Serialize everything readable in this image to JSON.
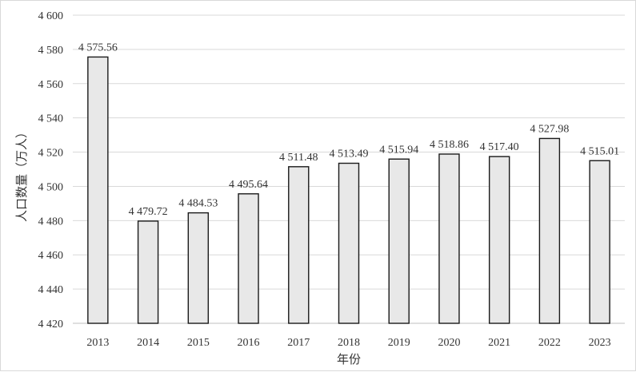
{
  "chart_data": {
    "type": "bar",
    "categories": [
      "2013",
      "2014",
      "2015",
      "2016",
      "2017",
      "2018",
      "2019",
      "2020",
      "2021",
      "2022",
      "2023"
    ],
    "values": [
      4575.56,
      4479.72,
      4484.53,
      4495.64,
      4511.48,
      4513.49,
      4515.94,
      4518.86,
      4517.4,
      4527.98,
      4515.01
    ],
    "data_labels": [
      "4 575.56",
      "4 479.72",
      "4 484.53",
      "4 495.64",
      "4 511.48",
      "4 513.49",
      "4 515.94",
      "4 518.86",
      "4 517.40",
      "4 527.98",
      "4 515.01"
    ],
    "y_ticks": [
      4420,
      4440,
      4460,
      4480,
      4500,
      4520,
      4540,
      4560,
      4580,
      4600
    ],
    "y_tick_labels": [
      "4 420",
      "4 440",
      "4 460",
      "4 480",
      "4 500",
      "4 520",
      "4 540",
      "4 560",
      "4 580",
      "4 600"
    ],
    "ylim": [
      4420,
      4600
    ],
    "xlabel": "年份",
    "ylabel": "人口数量（万人）",
    "title": "",
    "grid": true,
    "legend": false
  }
}
